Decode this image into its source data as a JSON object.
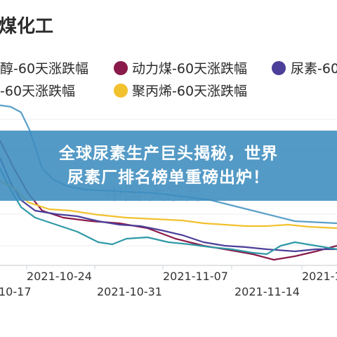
{
  "chart_data": {
    "type": "line",
    "title": "煤化工",
    "watermark": "中国·大宗商",
    "legend": [
      {
        "label": "醇-60天涨跌幅",
        "color": "#5aa0c8"
      },
      {
        "label": "动力煤-60天涨跌幅",
        "color": "#8a1a4a"
      },
      {
        "label": "尿素-60",
        "color": "#4b3f9a"
      },
      {
        "label": "-60天涨跌幅",
        "color": "#2f9aa6"
      },
      {
        "label": "聚丙烯-60天涨跌幅",
        "color": "#f2c12e"
      }
    ],
    "x_ticks_upper": [
      "2021-10-24",
      "2021-11-07",
      "2021-1"
    ],
    "x_ticks_lower": [
      "10-17",
      "2021-10-31",
      "2021-11-14"
    ],
    "series": [
      {
        "name": "醇-60天涨跌幅",
        "color": "#5aa0c8",
        "points": [
          [
            0,
            150
          ],
          [
            15,
            152
          ],
          [
            30,
            160
          ],
          [
            42,
            185
          ],
          [
            52,
            215
          ],
          [
            60,
            240
          ],
          [
            75,
            255
          ],
          [
            95,
            265
          ],
          [
            120,
            270
          ],
          [
            160,
            272
          ],
          [
            220,
            275
          ],
          [
            300,
            285
          ],
          [
            360,
            300
          ],
          [
            420,
            315
          ],
          [
            480,
            318
          ]
        ]
      },
      {
        "name": "动力煤-60天涨跌幅",
        "color": "#8a1a4a",
        "points": [
          [
            0,
            200
          ],
          [
            20,
            240
          ],
          [
            40,
            275
          ],
          [
            60,
            300
          ],
          [
            90,
            310
          ],
          [
            130,
            315
          ],
          [
            170,
            318
          ],
          [
            210,
            325
          ],
          [
            250,
            340
          ],
          [
            290,
            350
          ],
          [
            320,
            355
          ],
          [
            360,
            362
          ],
          [
            390,
            370
          ],
          [
            420,
            365
          ],
          [
            450,
            358
          ],
          [
            480,
            350
          ]
        ]
      },
      {
        "name": "尿素-60",
        "color": "#4b3f9a",
        "points": [
          [
            0,
            225
          ],
          [
            15,
            260
          ],
          [
            30,
            285
          ],
          [
            50,
            300
          ],
          [
            80,
            305
          ],
          [
            110,
            308
          ],
          [
            140,
            315
          ],
          [
            170,
            320
          ],
          [
            200,
            322
          ],
          [
            230,
            328
          ],
          [
            260,
            335
          ],
          [
            290,
            345
          ],
          [
            320,
            350
          ],
          [
            350,
            352
          ],
          [
            380,
            355
          ],
          [
            420,
            358
          ],
          [
            450,
            355
          ],
          [
            480,
            355
          ]
        ]
      },
      {
        "name": "-60天涨跌幅",
        "color": "#2f9aa6",
        "points": [
          [
            0,
            240
          ],
          [
            15,
            270
          ],
          [
            30,
            295
          ],
          [
            50,
            310
          ],
          [
            80,
            320
          ],
          [
            110,
            330
          ],
          [
            140,
            345
          ],
          [
            160,
            348
          ],
          [
            180,
            340
          ],
          [
            210,
            338
          ],
          [
            240,
            345
          ],
          [
            270,
            348
          ],
          [
            300,
            352
          ],
          [
            330,
            355
          ],
          [
            360,
            360
          ],
          [
            380,
            362
          ],
          [
            400,
            350
          ],
          [
            420,
            345
          ],
          [
            450,
            350
          ],
          [
            480,
            355
          ]
        ]
      },
      {
        "name": "聚丙烯-60天涨跌幅",
        "color": "#f2c12e",
        "points": [
          [
            0,
            258
          ],
          [
            20,
            268
          ],
          [
            40,
            288
          ],
          [
            70,
            298
          ],
          [
            100,
            300
          ],
          [
            140,
            306
          ],
          [
            180,
            310
          ],
          [
            220,
            312
          ],
          [
            260,
            314
          ],
          [
            290,
            318
          ],
          [
            320,
            320
          ],
          [
            350,
            322
          ],
          [
            380,
            322
          ],
          [
            410,
            320
          ],
          [
            440,
            323
          ],
          [
            480,
            325
          ]
        ]
      }
    ],
    "grid": true
  },
  "banner": {
    "line1": "全球尿素生产巨头揭秘，世界",
    "line2": "尿素厂排名榜单重磅出炉！"
  }
}
